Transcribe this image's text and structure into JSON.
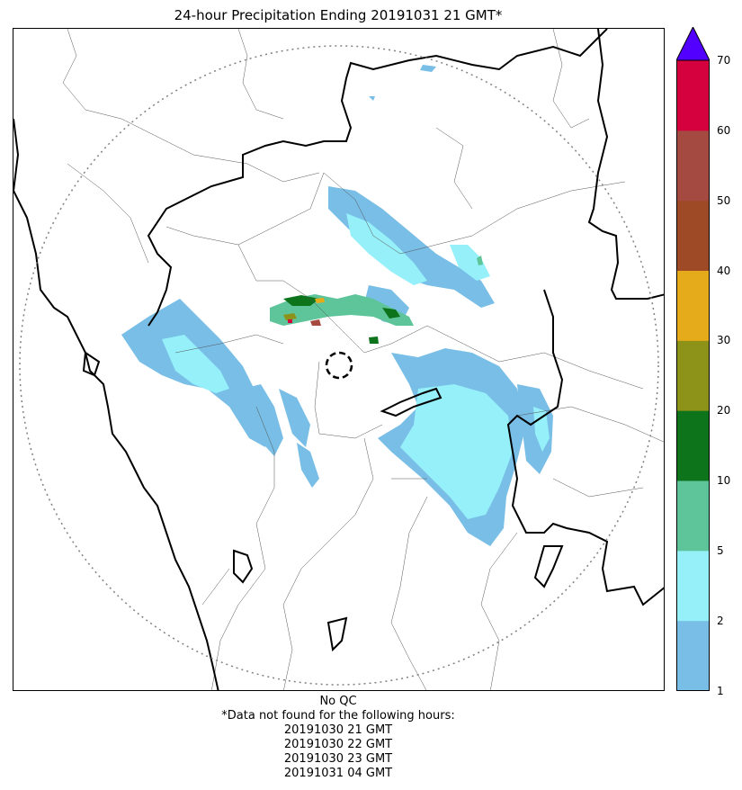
{
  "title": "24-hour Precipitation Ending 20191031 21 GMT*",
  "legend": {
    "type": "colorbar",
    "extend": "max",
    "ticks": [
      "1",
      "2",
      "5",
      "10",
      "20",
      "30",
      "40",
      "50",
      "60",
      "70"
    ],
    "bins": [
      {
        "from": 1,
        "to": 2,
        "color": "#78bee6"
      },
      {
        "from": 2,
        "to": 5,
        "color": "#96f0fa"
      },
      {
        "from": 5,
        "to": 10,
        "color": "#5ec49a"
      },
      {
        "from": 10,
        "to": 20,
        "color": "#0d741c"
      },
      {
        "from": 20,
        "to": 30,
        "color": "#8c9318"
      },
      {
        "from": 30,
        "to": 40,
        "color": "#e6ab1a"
      },
      {
        "from": 40,
        "to": 50,
        "color": "#9e4a26"
      },
      {
        "from": 50,
        "to": 60,
        "color": "#a54a40"
      },
      {
        "from": 60,
        "to": 70,
        "color": "#d5003e"
      }
    ],
    "overflow_color": "#5200ff"
  },
  "map": {
    "radar_site_marker": "dashed-circle",
    "range_ring": "dotted-circle",
    "boundaries": [
      "coastline",
      "state-borders",
      "district-borders"
    ]
  },
  "footer": {
    "qc": "No QC",
    "missing_note": "*Data not found for the following hours:",
    "missing_hours": [
      "20191030 21 GMT",
      "20191030 22 GMT",
      "20191030 23 GMT",
      "20191031 04 GMT"
    ]
  }
}
